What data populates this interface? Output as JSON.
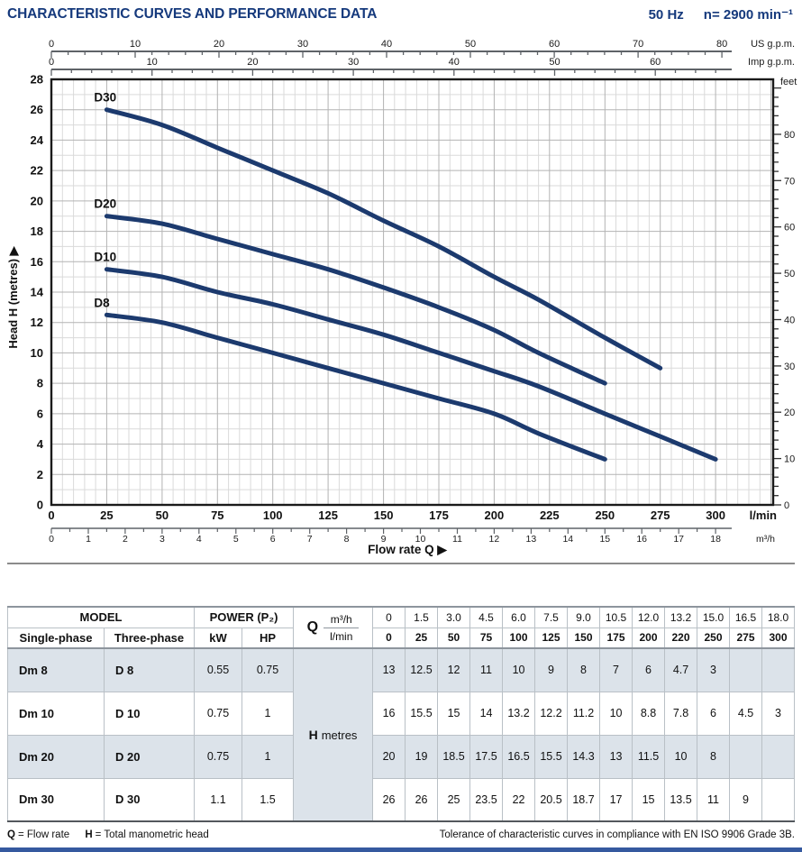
{
  "header": {
    "title": "CHARACTERISTIC CURVES AND PERFORMANCE DATA",
    "frequency": "50 Hz",
    "speed": "n= 2900 min⁻¹"
  },
  "chart_data": {
    "type": "line",
    "title": "",
    "xlabel": "Flow rate Q",
    "ylabel": "Head H (metres)",
    "grid": true,
    "curve_color": "#1c3a6e",
    "axes": {
      "head_m": {
        "min": 0,
        "max": 28,
        "label_step": 2,
        "grid_minor": 1,
        "unit_label": "Head H (metres)"
      },
      "lmin": {
        "min": 0,
        "max": 326,
        "label_step": 25,
        "grid_minor": 5,
        "last_label": 300,
        "unit_label": "l/min"
      },
      "m3h": {
        "max": 18,
        "step": 1,
        "minor": 0.5,
        "unit_label": "m³/h",
        "lmin_per_unit": 16.6667
      },
      "us_gpm": {
        "max": 80,
        "step": 10,
        "minor": 2,
        "tick_max": 80,
        "unit_label": "US g.p.m.",
        "lmin_per_unit": 3.78541
      },
      "imp_gpm": {
        "max": 60,
        "step": 10,
        "minor": 2,
        "tick_max": 66,
        "unit_label": "Imp g.p.m.",
        "lmin_per_unit": 4.54609
      },
      "feet": {
        "max": 80,
        "step": 10,
        "minor": 2,
        "tick_max": 90,
        "unit_label": "feet",
        "m_per_unit": 0.3048
      }
    },
    "series": [
      {
        "name": "D30",
        "points": [
          [
            25,
            26
          ],
          [
            50,
            25
          ],
          [
            75,
            23.5
          ],
          [
            100,
            22
          ],
          [
            125,
            20.5
          ],
          [
            150,
            18.7
          ],
          [
            175,
            17
          ],
          [
            200,
            15
          ],
          [
            220,
            13.5
          ],
          [
            250,
            11
          ],
          [
            275,
            9
          ]
        ]
      },
      {
        "name": "D20",
        "points": [
          [
            25,
            19
          ],
          [
            50,
            18.5
          ],
          [
            75,
            17.5
          ],
          [
            100,
            16.5
          ],
          [
            125,
            15.5
          ],
          [
            150,
            14.3
          ],
          [
            175,
            13
          ],
          [
            200,
            11.5
          ],
          [
            220,
            10
          ],
          [
            250,
            8
          ]
        ]
      },
      {
        "name": "D10",
        "points": [
          [
            25,
            15.5
          ],
          [
            50,
            15
          ],
          [
            75,
            14
          ],
          [
            100,
            13.2
          ],
          [
            125,
            12.2
          ],
          [
            150,
            11.2
          ],
          [
            175,
            10
          ],
          [
            200,
            8.8
          ],
          [
            220,
            7.8
          ],
          [
            250,
            6
          ],
          [
            275,
            4.5
          ],
          [
            300,
            3
          ]
        ]
      },
      {
        "name": "D8",
        "points": [
          [
            25,
            12.5
          ],
          [
            50,
            12
          ],
          [
            75,
            11
          ],
          [
            100,
            10
          ],
          [
            125,
            9
          ],
          [
            150,
            8
          ],
          [
            175,
            7
          ],
          [
            200,
            6
          ],
          [
            220,
            4.7
          ],
          [
            250,
            3
          ]
        ]
      }
    ]
  },
  "performance_table": {
    "header": {
      "model_label": "MODEL",
      "single_phase": "Single-phase",
      "three_phase": "Three-phase",
      "power_label": "POWER (P₂)",
      "kw": "kW",
      "hp": "HP",
      "q_label": "Q",
      "m3h_label": "m³/h",
      "lmin_label": "l/min",
      "h_label": "H",
      "h_unit": "metres",
      "m3h_values": [
        "0",
        "1.5",
        "3.0",
        "4.5",
        "6.0",
        "7.5",
        "9.0",
        "10.5",
        "12.0",
        "13.2",
        "15.0",
        "16.5",
        "18.0"
      ],
      "lmin_values": [
        "0",
        "25",
        "50",
        "75",
        "100",
        "125",
        "150",
        "175",
        "200",
        "220",
        "250",
        "275",
        "300"
      ]
    },
    "rows": [
      {
        "single": "Dm 8",
        "three": "D 8",
        "kw": "0.55",
        "hp": "0.75",
        "h": [
          "13",
          "12.5",
          "12",
          "11",
          "10",
          "9",
          "8",
          "7",
          "6",
          "4.7",
          "3",
          "",
          ""
        ]
      },
      {
        "single": "Dm 10",
        "three": "D 10",
        "kw": "0.75",
        "hp": "1",
        "h": [
          "16",
          "15.5",
          "15",
          "14",
          "13.2",
          "12.2",
          "11.2",
          "10",
          "8.8",
          "7.8",
          "6",
          "4.5",
          "3"
        ]
      },
      {
        "single": "Dm 20",
        "three": "D 20",
        "kw": "0.75",
        "hp": "1",
        "h": [
          "20",
          "19",
          "18.5",
          "17.5",
          "16.5",
          "15.5",
          "14.3",
          "13",
          "11.5",
          "10",
          "8",
          "",
          ""
        ]
      },
      {
        "single": "Dm 30",
        "three": "D 30",
        "kw": "1.1",
        "hp": "1.5",
        "h": [
          "26",
          "26",
          "25",
          "23.5",
          "22",
          "20.5",
          "18.7",
          "17",
          "15",
          "13.5",
          "11",
          "9",
          ""
        ]
      }
    ]
  },
  "notes": {
    "q_label": "Q",
    "q_def": "= Flow rate",
    "h_label": "H",
    "h_def": "= Total manometric head",
    "tolerance": "Tolerance of characteristic curves in compliance with EN ISO 9906 Grade 3B."
  },
  "colors": {
    "accent_blue": "#15397c",
    "curve_navy": "#1c3a6e",
    "row_shade": "#dce3ea"
  }
}
